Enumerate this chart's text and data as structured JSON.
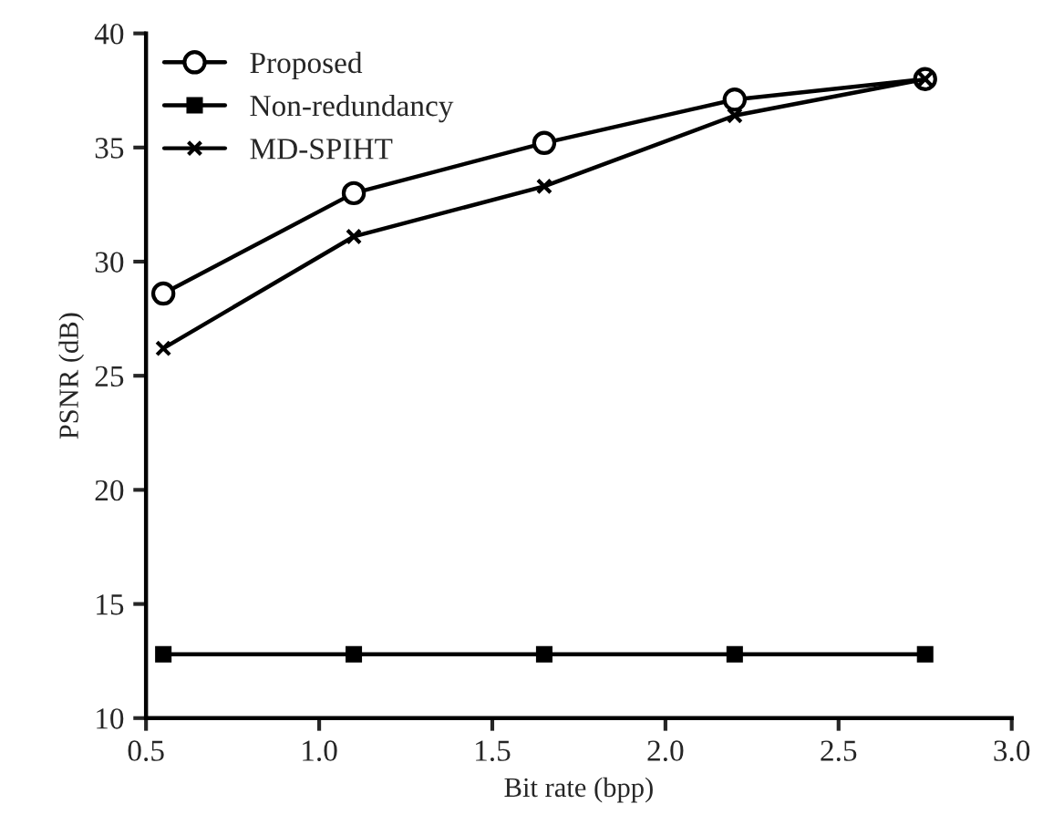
{
  "chart_data": {
    "type": "line",
    "xlabel": "Bit rate (bpp)",
    "ylabel": "PSNR (dB)",
    "x": [
      0.55,
      1.1,
      1.65,
      2.2,
      2.75
    ],
    "series": [
      {
        "name": "Proposed",
        "color": "#000000",
        "marker": "circle",
        "values": [
          28.6,
          33.0,
          35.2,
          37.1,
          38.0
        ]
      },
      {
        "name": "Non-redundancy",
        "color": "#000000",
        "marker": "square",
        "values": [
          12.8,
          12.8,
          12.8,
          12.8,
          12.8
        ]
      },
      {
        "name": "MD-SPIHT",
        "color": "#000000",
        "marker": "cross",
        "values": [
          26.2,
          31.1,
          33.3,
          36.4,
          38.0
        ]
      }
    ],
    "xlim": [
      0.5,
      3.0
    ],
    "xticks": [
      {
        "value": 0.5,
        "label": "0.5"
      },
      {
        "value": 1.0,
        "label": "1.0"
      },
      {
        "value": 1.5,
        "label": "1.5"
      },
      {
        "value": 2.0,
        "label": "2.0"
      },
      {
        "value": 2.5,
        "label": "2.5"
      },
      {
        "value": 3.0,
        "label": "3.0"
      }
    ],
    "ylim": [
      10,
      40
    ],
    "yticks": [
      10,
      15,
      20,
      25,
      30,
      35,
      40
    ],
    "grid": false,
    "legend": "top left",
    "line_style": "solid"
  }
}
